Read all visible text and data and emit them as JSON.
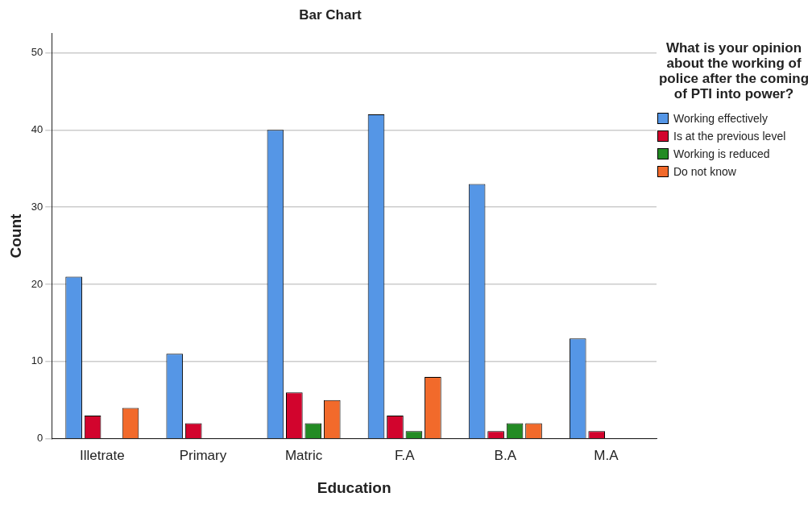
{
  "chart_data": {
    "type": "bar",
    "title": "Bar Chart",
    "xlabel": "Education",
    "ylabel": "Count",
    "legend_title": "What is your opinion about the working of police after the coming of PTI into power?",
    "categories": [
      "Illetrate",
      "Primary",
      "Matric",
      "F.A",
      "B.A",
      "M.A"
    ],
    "series": [
      {
        "name": "Working effectively",
        "color": "#5596e6",
        "values": [
          21,
          11,
          40,
          42,
          33,
          13
        ]
      },
      {
        "name": "Is at the previous level",
        "color": "#d2042d",
        "values": [
          3,
          2,
          6,
          3,
          1,
          1
        ]
      },
      {
        "name": "Working is reduced",
        "color": "#238b24",
        "values": [
          null,
          null,
          2,
          1,
          2,
          null
        ]
      },
      {
        "name": "Do not know",
        "color": "#f26a2b",
        "values": [
          4,
          null,
          5,
          8,
          2,
          null
        ]
      }
    ],
    "ylim": [
      0,
      52.5
    ],
    "yticks": [
      0,
      10,
      20,
      30,
      40,
      50
    ],
    "grid": "y",
    "legend": "right"
  }
}
